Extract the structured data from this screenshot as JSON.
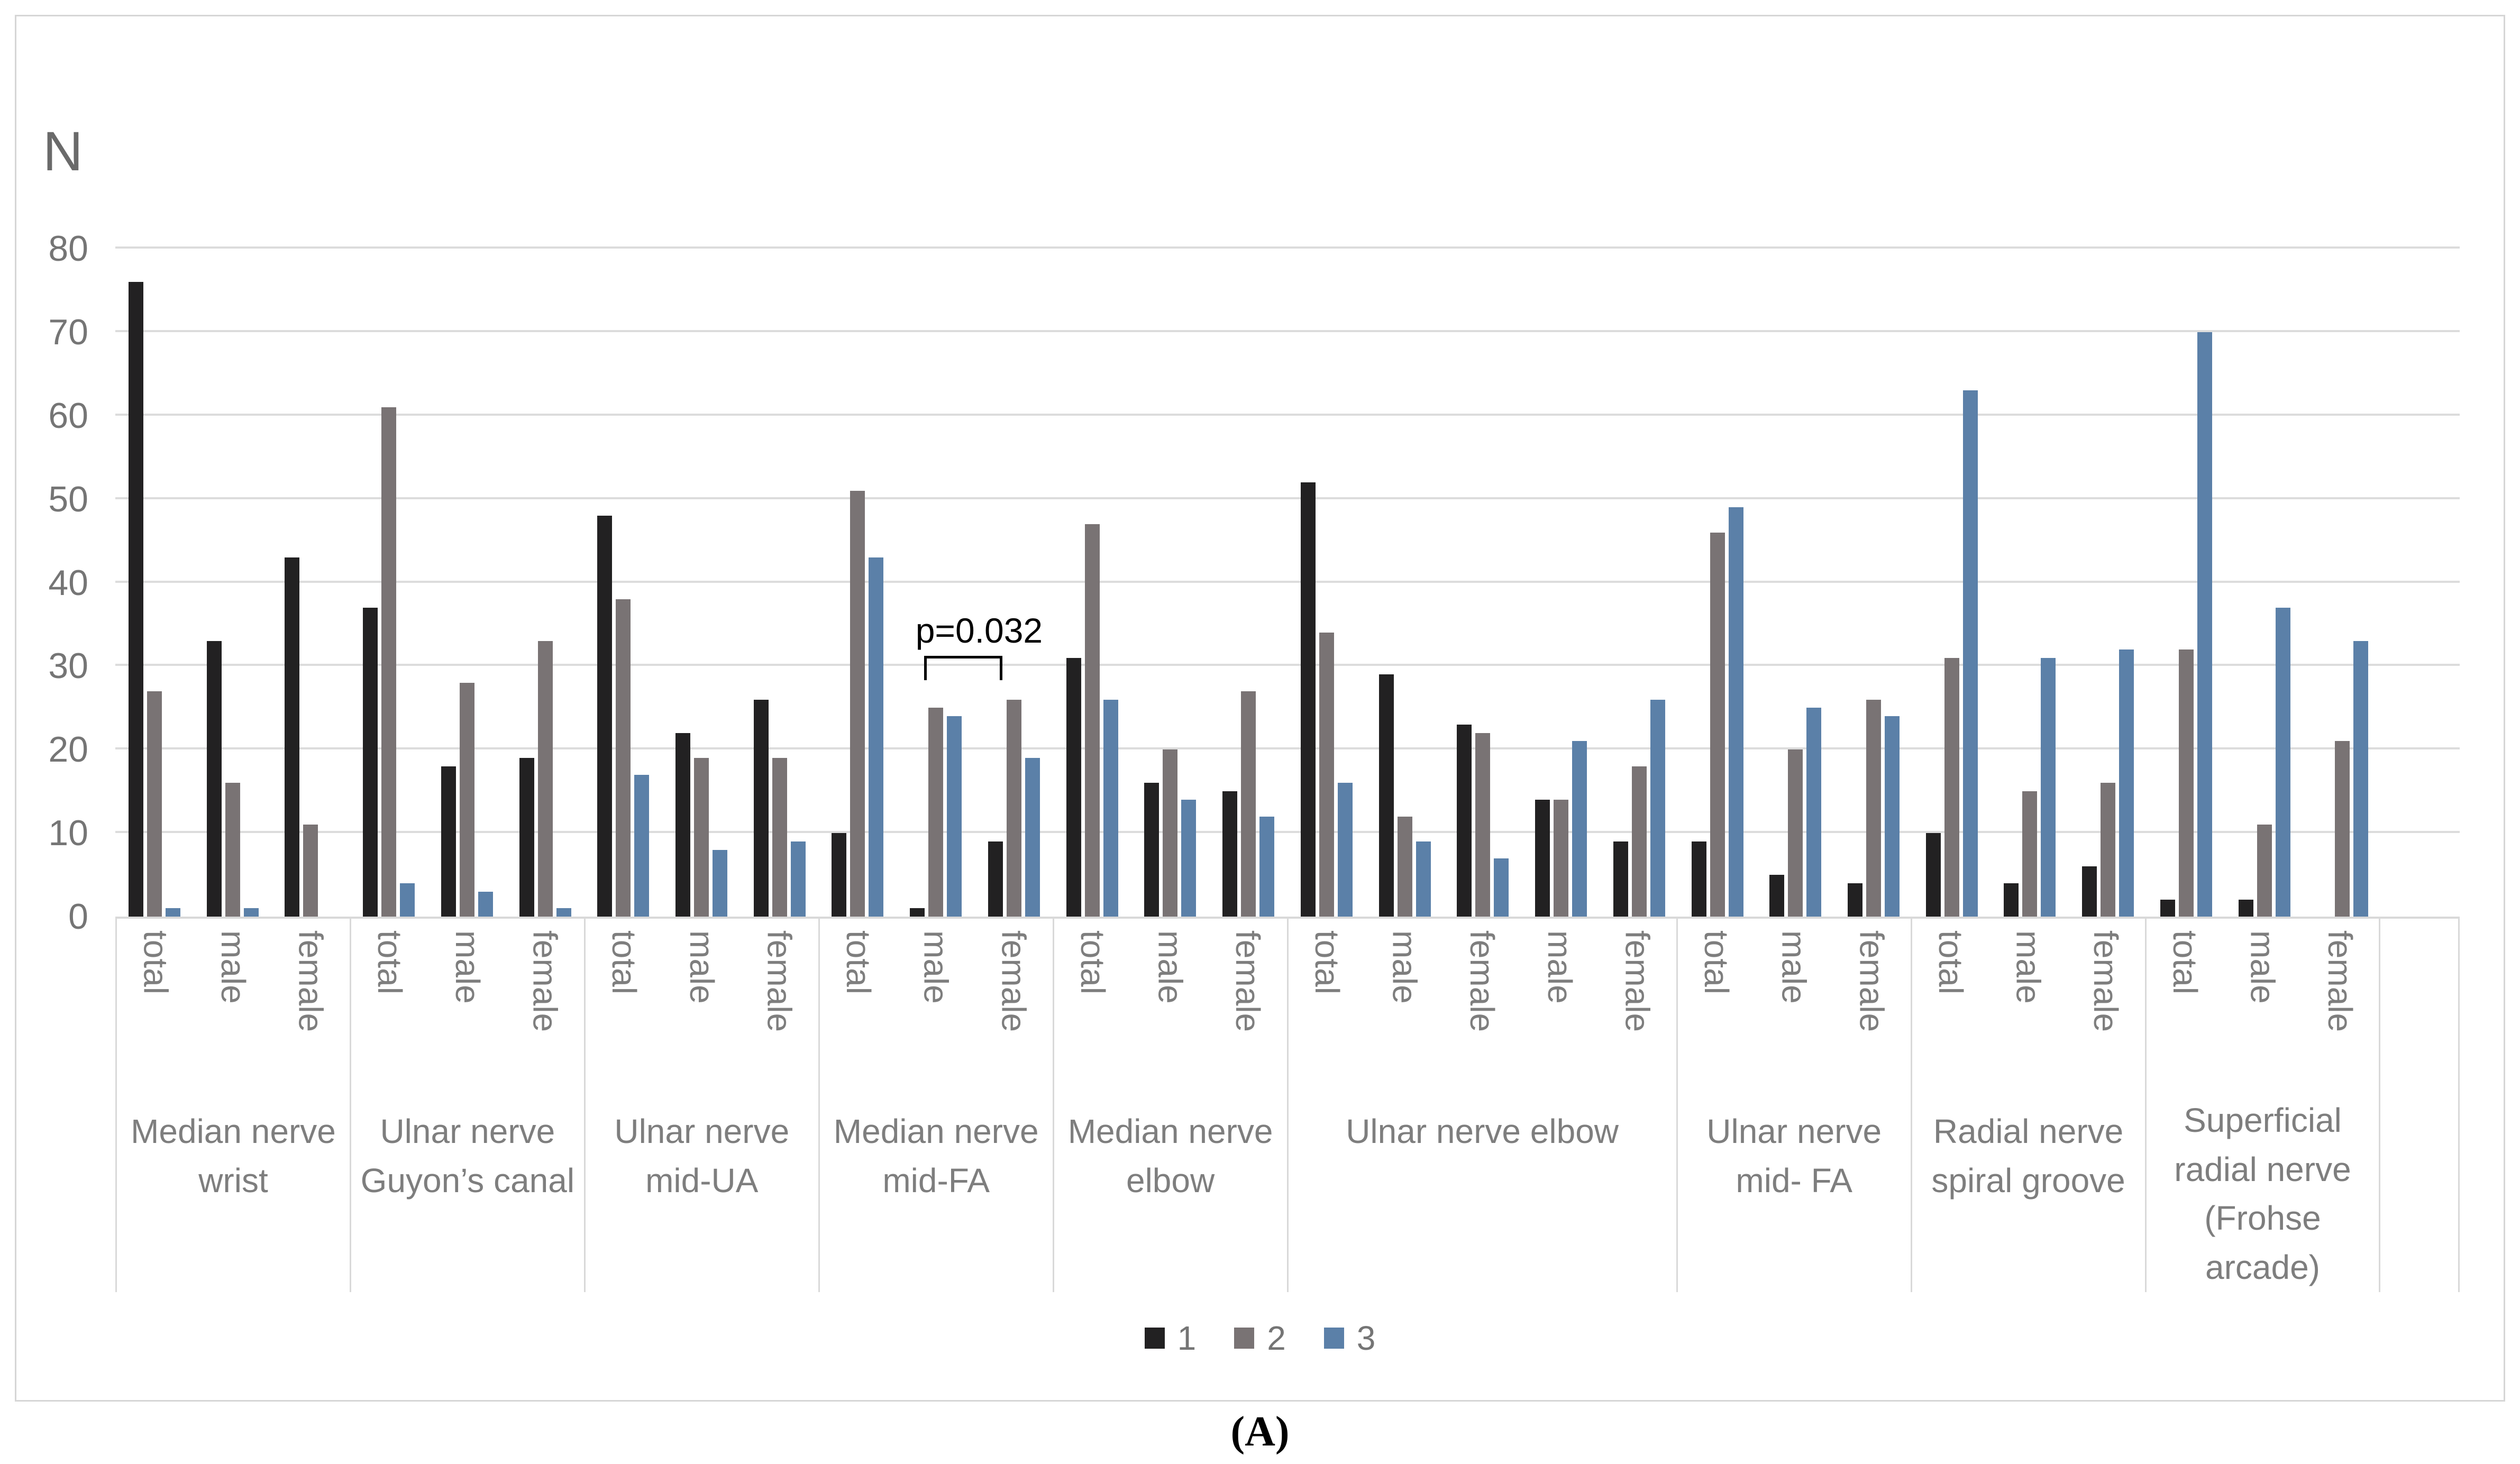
{
  "figure": {
    "caption": "(A)"
  },
  "chart_data": {
    "type": "bar",
    "title": "",
    "xlabel": "",
    "ylabel": "N",
    "ylim": [
      0,
      80
    ],
    "yticks": [
      0,
      10,
      20,
      30,
      40,
      50,
      60,
      70,
      80
    ],
    "grid": true,
    "legend_position": "bottom",
    "series": [
      {
        "name": "1",
        "color": "#222122"
      },
      {
        "name": "2",
        "color": "#797374"
      },
      {
        "name": "3",
        "color": "#5b80a8"
      }
    ],
    "groups": [
      {
        "label_lines": [
          "Median nerve",
          "wrist"
        ],
        "categories": [
          "total",
          "male",
          "female"
        ],
        "values": [
          [
            76,
            27,
            1
          ],
          [
            33,
            16,
            1
          ],
          [
            43,
            11,
            0
          ]
        ]
      },
      {
        "label_lines": [
          "Ulnar nerve",
          "Guyon’s canal"
        ],
        "categories": [
          "total",
          "male",
          "female"
        ],
        "values": [
          [
            37,
            61,
            4
          ],
          [
            18,
            28,
            3
          ],
          [
            19,
            33,
            1
          ]
        ]
      },
      {
        "label_lines": [
          "Ulnar nerve",
          "mid-UA"
        ],
        "categories": [
          "total",
          "male",
          "female"
        ],
        "values": [
          [
            48,
            38,
            17
          ],
          [
            22,
            19,
            8
          ],
          [
            26,
            19,
            9
          ]
        ]
      },
      {
        "label_lines": [
          "Median nerve",
          "mid-FA"
        ],
        "categories": [
          "total",
          "male",
          "female"
        ],
        "values": [
          [
            10,
            51,
            43
          ],
          [
            1,
            25,
            24
          ],
          [
            9,
            26,
            19
          ]
        ]
      },
      {
        "label_lines": [
          "Median nerve",
          "elbow"
        ],
        "categories": [
          "total",
          "male",
          "female"
        ],
        "values": [
          [
            31,
            47,
            26
          ],
          [
            16,
            20,
            14
          ],
          [
            15,
            27,
            12
          ]
        ]
      },
      {
        "label_lines": [
          "Ulnar nerve elbow"
        ],
        "categories": [
          "total",
          "male",
          "female",
          "male",
          "female"
        ],
        "values": [
          [
            52,
            34,
            16
          ],
          [
            29,
            12,
            9
          ],
          [
            23,
            22,
            7
          ],
          [
            14,
            14,
            21
          ],
          [
            9,
            18,
            26
          ]
        ]
      },
      {
        "label_lines": [
          "Ulnar nerve",
          "mid- FA"
        ],
        "categories": [
          "total",
          "male",
          "female"
        ],
        "values": [
          [
            9,
            46,
            49
          ],
          [
            5,
            20,
            25
          ],
          [
            4,
            26,
            24
          ]
        ]
      },
      {
        "label_lines": [
          "Radial nerve",
          "spiral groove"
        ],
        "categories": [
          "total",
          "male",
          "female"
        ],
        "values": [
          [
            10,
            31,
            63
          ],
          [
            4,
            15,
            31
          ],
          [
            6,
            16,
            32
          ]
        ]
      },
      {
        "label_lines": [
          "Superficial",
          "radial nerve",
          "(Frohse",
          "arcade)"
        ],
        "categories": [
          "total",
          "male",
          "female"
        ],
        "values": [
          [
            2,
            32,
            70
          ],
          [
            2,
            11,
            37
          ],
          [
            0,
            21,
            33
          ]
        ]
      },
      {
        "label_lines": [],
        "categories": [],
        "values": []
      }
    ],
    "annotation": {
      "text": "p=0.032",
      "group_index": 3,
      "from_category_index": 1,
      "to_category_index": 2
    },
    "colors": {
      "gridline": "#dcdcdc",
      "axis_text": "#757575",
      "category_text": "#7e7e7e",
      "border": "#d6d6d6"
    }
  }
}
